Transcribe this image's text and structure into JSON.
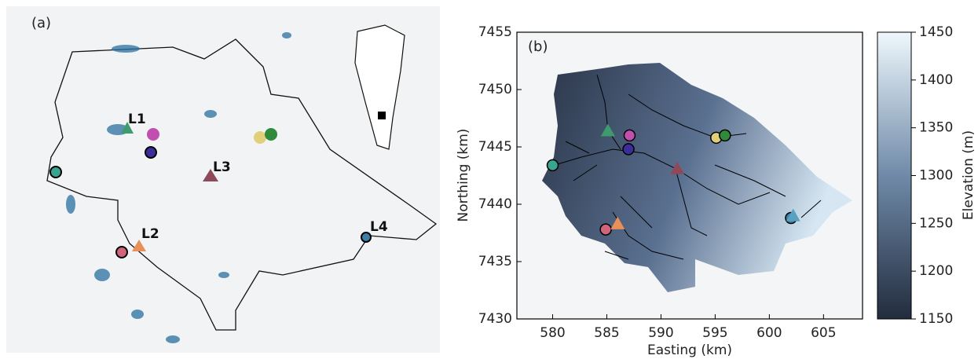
{
  "panel_a": {
    "label": "(a)",
    "lakes": [
      "L1",
      "L2",
      "L3",
      "L4"
    ]
  },
  "chart_data": {
    "type": "scatter",
    "label": "(b)",
    "xlabel": "Easting (km)",
    "ylabel": "Northing (km)",
    "xlim": [
      576.7,
      608.6
    ],
    "ylim": [
      7430,
      7455
    ],
    "xticks": [
      580,
      585,
      590,
      595,
      600,
      605
    ],
    "yticks": [
      7430,
      7435,
      7440,
      7445,
      7450,
      7455
    ],
    "points": {
      "x": [
        580.0,
        585.1,
        587.1,
        587.0,
        591.5,
        595.1,
        595.9,
        584.9,
        586.0,
        602.0,
        602.2
      ],
      "y": [
        7443.4,
        7446.4,
        7446.0,
        7444.8,
        7443.1,
        7445.8,
        7446.0,
        7437.8,
        7438.3,
        7438.8,
        7439.0
      ],
      "colors": [
        "#3aa58f",
        "#3f9a6e",
        "#c04fb0",
        "#3a2f9a",
        "#8e4a5a",
        "#e2cf7a",
        "#2f8a3a",
        "#d0647a",
        "#e8905a",
        "#3d7fa8",
        "#5aa0c0"
      ],
      "markers": [
        "circle",
        "triangle",
        "circle",
        "circle",
        "triangle",
        "circle",
        "circle",
        "circle",
        "triangle",
        "circle",
        "triangle"
      ]
    },
    "colorbar": {
      "label": "Elevation (m)",
      "lim": [
        1150,
        1450
      ],
      "ticks": [
        1150,
        1200,
        1250,
        1300,
        1350,
        1400,
        1450
      ]
    }
  }
}
